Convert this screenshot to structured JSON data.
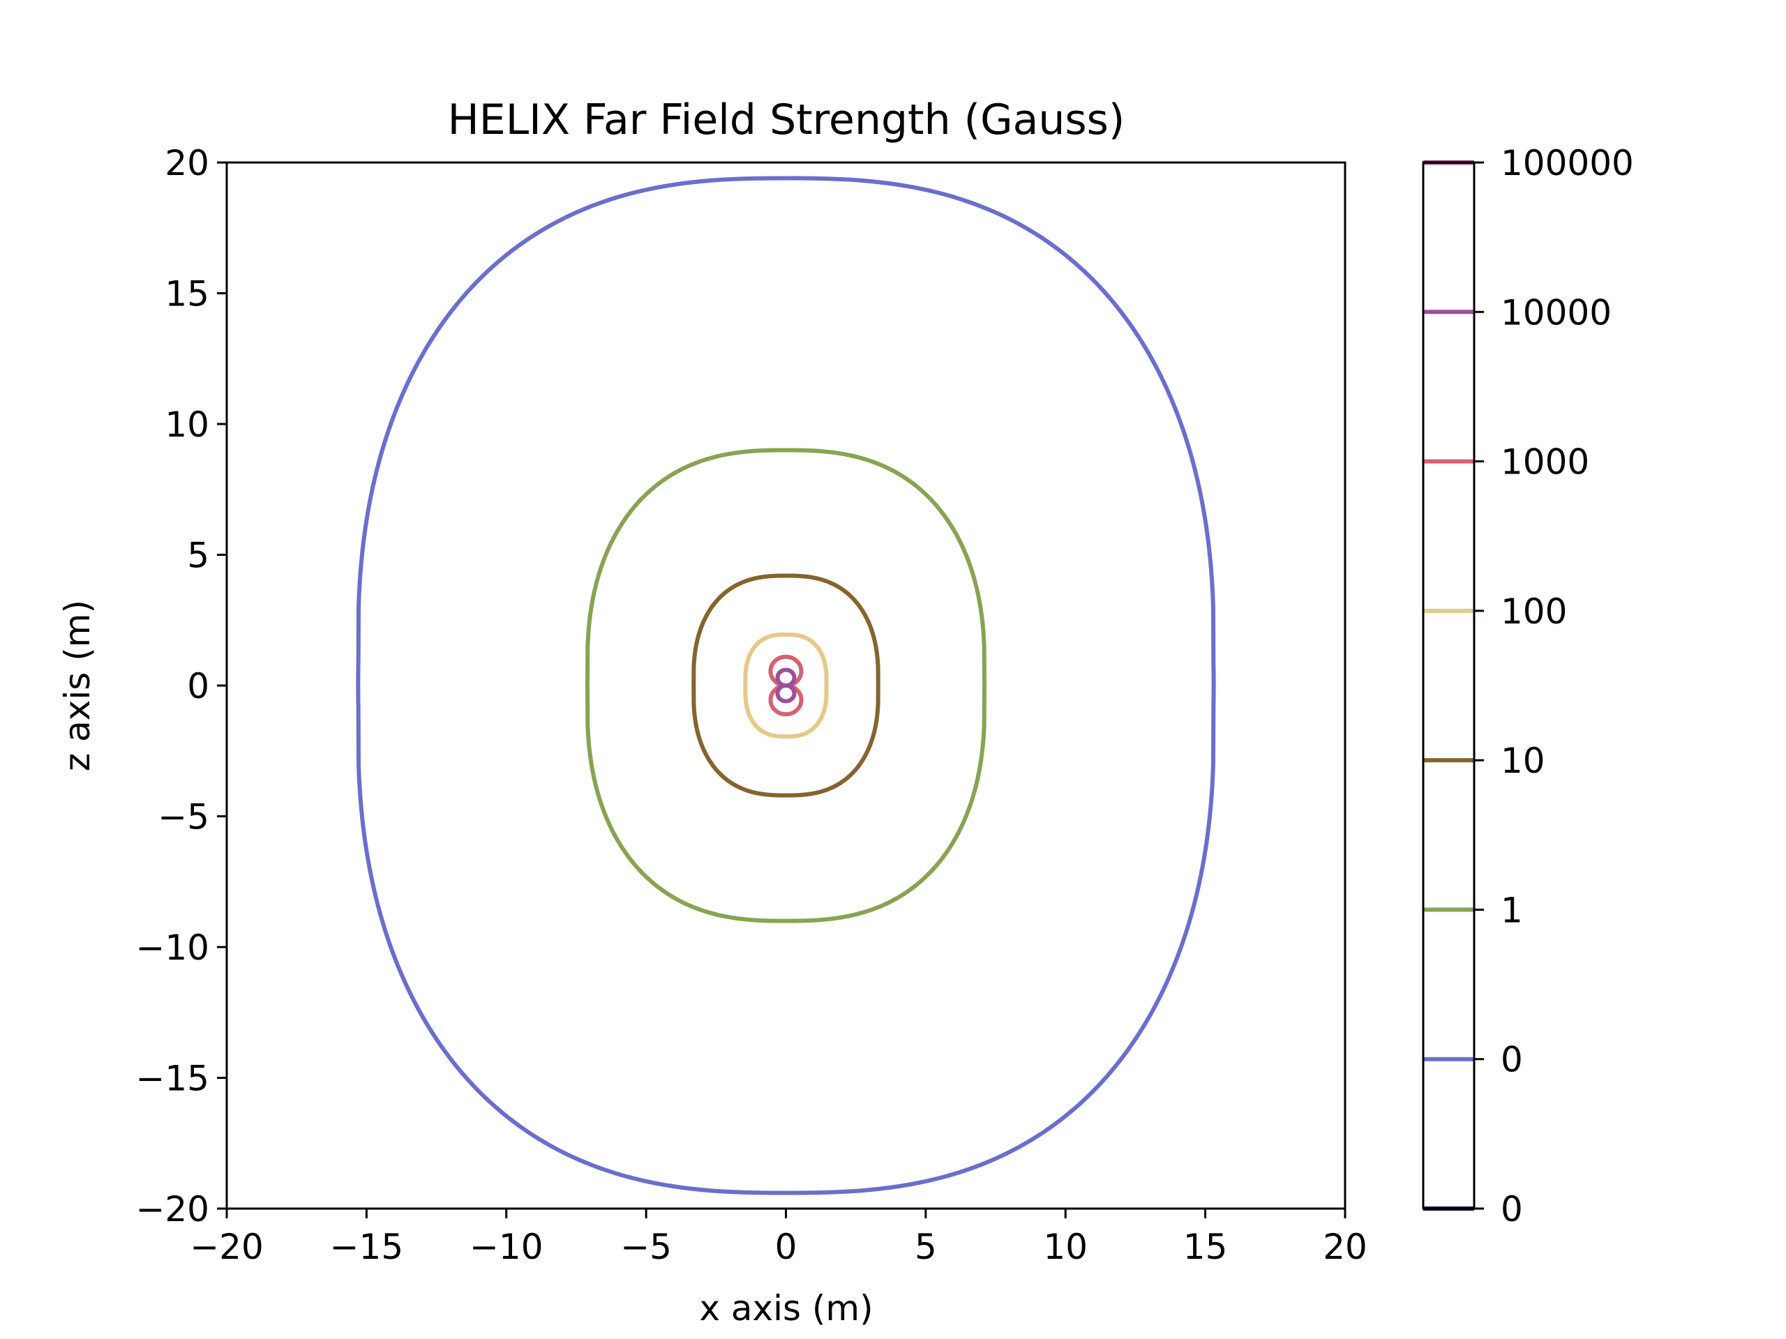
{
  "chart_data": {
    "type": "contour",
    "title": "HELIX Far Field Strength (Gauss)",
    "xlabel": "x axis (m)",
    "ylabel": "z axis (m)",
    "xlim": [
      -20,
      20
    ],
    "ylim": [
      -20,
      20
    ],
    "xticks": [
      -20,
      -15,
      -10,
      -5,
      0,
      5,
      10,
      15,
      20
    ],
    "yticks": [
      -20,
      -15,
      -10,
      -5,
      0,
      5,
      10,
      15,
      20
    ],
    "grid": false,
    "colorbar": {
      "scale": "log",
      "tick_labels": [
        "0",
        "0",
        "1",
        "10",
        "100",
        "1000",
        "10000",
        "100000"
      ],
      "levels": [
        {
          "label": "0",
          "color": "#0a0a3a"
        },
        {
          "label": "0",
          "color": "#6a6fcc"
        },
        {
          "label": "1",
          "color": "#88a352"
        },
        {
          "label": "10",
          "color": "#85642e"
        },
        {
          "label": "100",
          "color": "#e6c889"
        },
        {
          "label": "1000",
          "color": "#d46272"
        },
        {
          "label": "10000",
          "color": "#9c4f98"
        },
        {
          "label": "100000",
          "color": "#8f2b7a"
        }
      ]
    },
    "contours": [
      {
        "level": "0",
        "color": "#6a6fcc",
        "half_width": 15.3,
        "half_height": 19.4,
        "straight_half": 1.8
      },
      {
        "level": "1",
        "color": "#88a352",
        "half_width": 7.1,
        "half_height": 9.0,
        "straight_half": 0.9
      },
      {
        "level": "10",
        "color": "#85642e",
        "half_width": 3.3,
        "half_height": 4.2,
        "straight_half": 0.4
      },
      {
        "level": "100",
        "color": "#e6c889",
        "half_width": 1.45,
        "half_height": 1.95,
        "straight_half": 0.25
      },
      {
        "level": "1000",
        "color": "#d46272",
        "shape": "figure-eight",
        "lobe_radius": 0.55,
        "lobe_center": 0.55
      },
      {
        "level": "10000",
        "color": "#9c4f98",
        "shape": "figure-eight",
        "lobe_radius": 0.3,
        "lobe_center": 0.3
      }
    ]
  }
}
